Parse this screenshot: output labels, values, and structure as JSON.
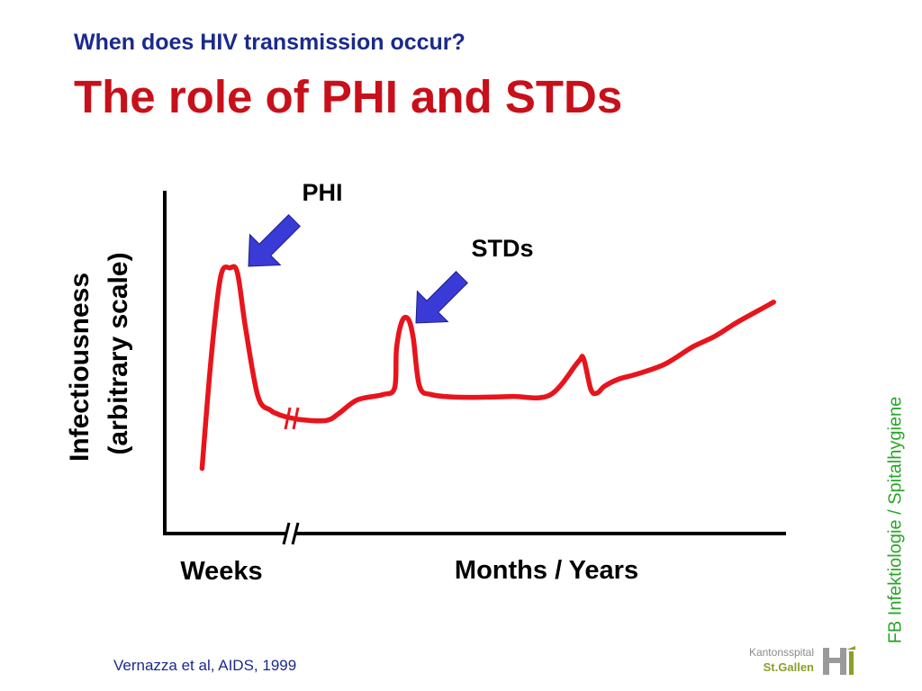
{
  "slide": {
    "title": "When does HIV transmission occur?",
    "subtitle": "The role of PHI and STDs",
    "citation": "Vernazza et al, AIDS, 1999",
    "sidebar_text": "FB Infektiologie / Spitalhygiene",
    "logo": {
      "line1": "Kantonsspital",
      "line2": "St.Gallen"
    }
  },
  "colors": {
    "title": "#1b2a8c",
    "subtitle": "#c8101a",
    "curve": "#e8141c",
    "arrow": "#3a3ad6",
    "axis": "#000000",
    "sidebar": "#2aa52a"
  },
  "chart_data": {
    "type": "line",
    "title": "",
    "ylabel_line1": "Infectiousness",
    "ylabel_line2": "(arbitrary scale)",
    "xlabels": [
      "Weeks",
      "Months / Years"
    ],
    "x_break": true,
    "grid": false,
    "xlim": [
      0,
      100
    ],
    "ylim": [
      0,
      100
    ],
    "series": [
      {
        "x": [
          6,
          7.5,
          9,
          10.5,
          11.7,
          13,
          15,
          17,
          18,
          19.2,
          22,
          26,
          28,
          31,
          35,
          37,
          37.3,
          38.2,
          39.2,
          40,
          41,
          43,
          47,
          52,
          56,
          62,
          66.5,
          67.4,
          68.6,
          69.6,
          70.8,
          73,
          76,
          80,
          82,
          85,
          88.5,
          92,
          96.5,
          98
        ],
        "y": [
          19,
          52,
          75,
          77.5,
          76,
          60,
          40,
          36,
          35,
          34.2,
          33.2,
          33,
          35,
          39,
          40.5,
          42.5,
          54,
          62,
          62.5,
          57,
          43,
          40.5,
          39.8,
          39.8,
          40,
          40.4,
          50,
          51,
          42,
          41,
          43,
          45,
          46.5,
          49,
          51,
          54.5,
          57.5,
          61.5,
          66,
          67.5
        ]
      }
    ],
    "annotations": [
      {
        "text": "PHI",
        "x": 12,
        "y": 79
      },
      {
        "text": "STDs",
        "x": 40,
        "y": 64
      }
    ]
  }
}
